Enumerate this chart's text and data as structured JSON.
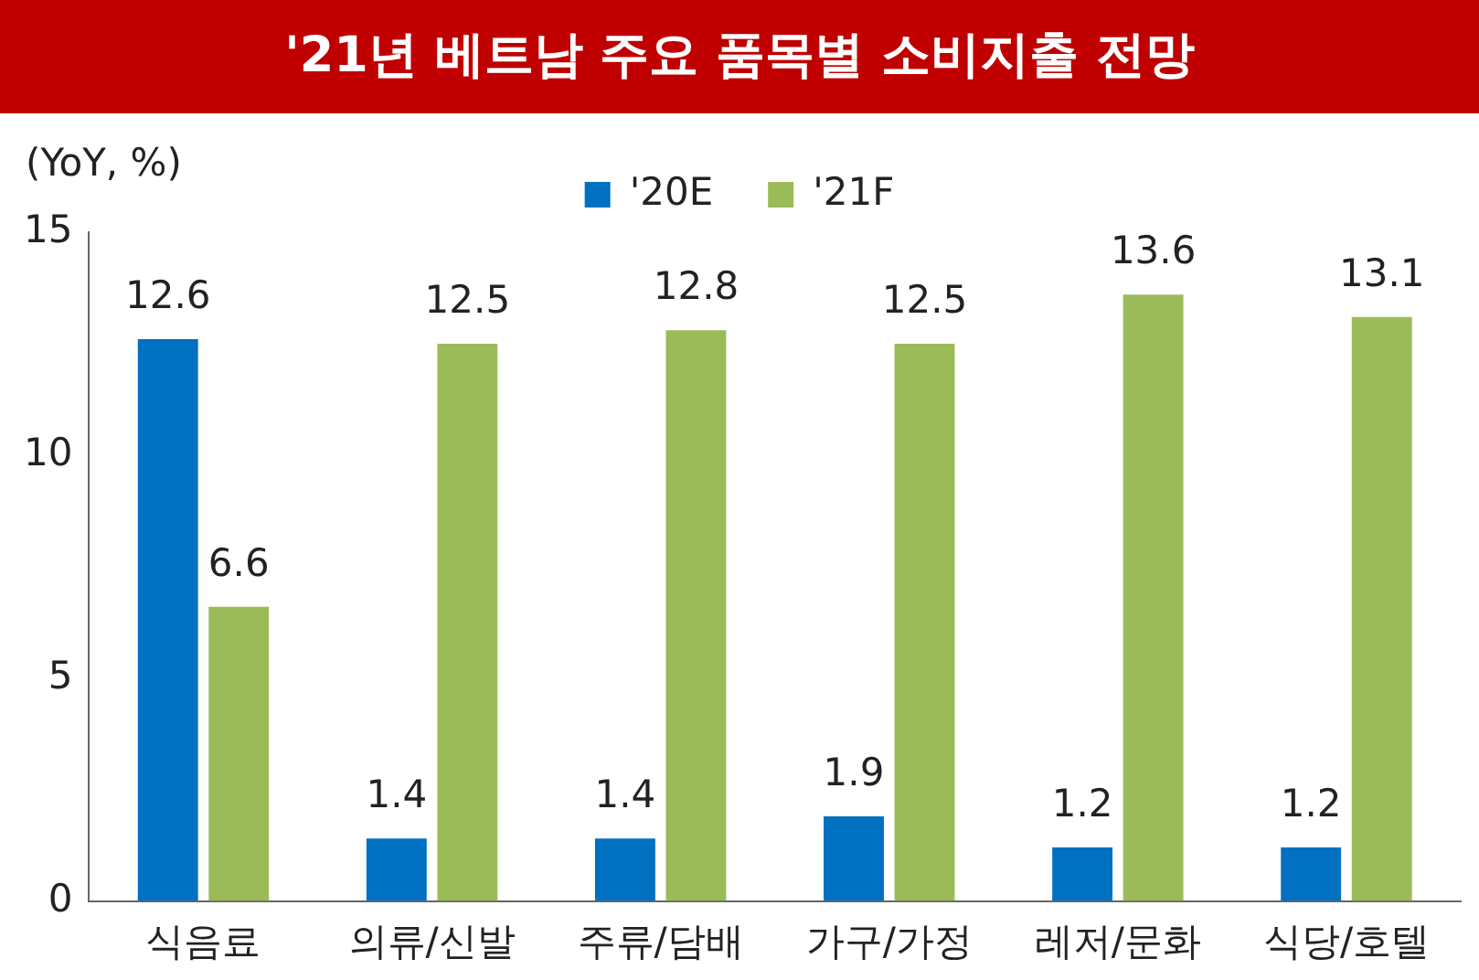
{
  "chart_data": {
    "type": "bar",
    "title": "'21년 베트남 주요 품목별 소비지출 전망",
    "ylabel": "(YoY, %)",
    "categories": [
      "식음료",
      "의류/신발",
      "주류/담배",
      "가구/가정",
      "레저/문화",
      "식당/호텔"
    ],
    "series": [
      {
        "name": "'20E",
        "color": "#0070c0",
        "values": [
          12.6,
          1.4,
          1.4,
          1.9,
          1.2,
          1.2
        ]
      },
      {
        "name": "'21F",
        "color": "#9bbb59",
        "values": [
          6.6,
          12.5,
          12.8,
          12.5,
          13.6,
          13.1
        ]
      }
    ],
    "ylim": [
      0,
      15
    ],
    "yticks": [
      0,
      5,
      10,
      15
    ],
    "grid": false,
    "legend": "top",
    "data_labels": true
  }
}
